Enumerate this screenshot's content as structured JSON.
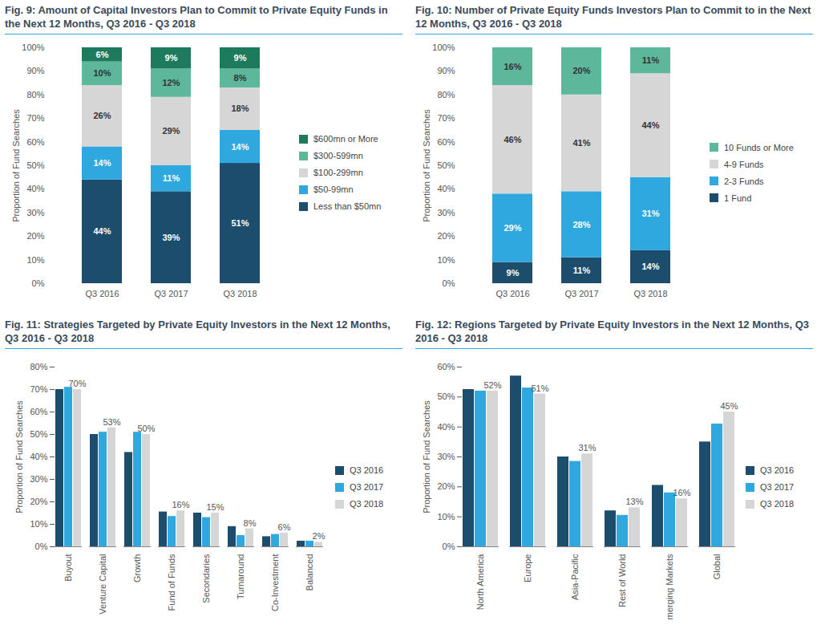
{
  "chart_data": [
    {
      "type": "bar",
      "title": "Fig. 9: Amount of Capital Investors Plan to Commit to Private Equity Funds in the Next 12 Months, Q3 2016 - Q3 2018",
      "ylabel": "Proportion of Fund Searches",
      "categories": [
        "Q3 2016",
        "Q3 2017",
        "Q3 2018"
      ],
      "stacked": true,
      "data_labels": true,
      "legend": "right",
      "series": [
        {
          "name": "Less than $50mn",
          "color": "#1c4d6d",
          "values": [
            44,
            39,
            51
          ],
          "value_labels": [
            "44%",
            "39%",
            "51%"
          ]
        },
        {
          "name": "$50-99mn",
          "color": "#2ea8df",
          "values": [
            14,
            11,
            14
          ],
          "value_labels": [
            "14%",
            "11%",
            "14%"
          ]
        },
        {
          "name": "$100-299mn",
          "color": "#d6d6d6",
          "values": [
            26,
            29,
            18
          ],
          "value_labels": [
            "26%",
            "29%",
            "18%"
          ]
        },
        {
          "name": "$300-599mn",
          "color": "#5db79b",
          "values": [
            10,
            12,
            8
          ],
          "value_labels": [
            "10%",
            "12%",
            "8%"
          ]
        },
        {
          "name": "$600mn or More",
          "color": "#1e7a5d",
          "values": [
            6,
            9,
            9
          ],
          "value_labels": [
            "6%",
            "9%",
            "9%"
          ]
        }
      ],
      "ylim": [
        0,
        100
      ],
      "yticks": [
        {
          "value": 0,
          "label": "0%"
        },
        {
          "value": 10,
          "label": "10%"
        },
        {
          "value": 20,
          "label": "20%"
        },
        {
          "value": 30,
          "label": "30%"
        },
        {
          "value": 40,
          "label": "40%"
        },
        {
          "value": 50,
          "label": "50%"
        },
        {
          "value": 60,
          "label": "60%"
        },
        {
          "value": 70,
          "label": "70%"
        },
        {
          "value": 80,
          "label": "80%"
        },
        {
          "value": 90,
          "label": "90%"
        },
        {
          "value": 100,
          "label": "100%"
        }
      ]
    },
    {
      "type": "bar",
      "title": "Fig. 10: Number of Private Equity Funds Investors Plan to Commit to in the Next 12 Months, Q3 2016 - Q3 2018",
      "ylabel": "Proportion of Fund Searches",
      "categories": [
        "Q3 2016",
        "Q3 2017",
        "Q3 2018"
      ],
      "stacked": true,
      "data_labels": true,
      "legend": "right",
      "series": [
        {
          "name": "1 Fund",
          "color": "#1c4d6d",
          "values": [
            9,
            11,
            14
          ],
          "value_labels": [
            "9%",
            "11%",
            "14%"
          ]
        },
        {
          "name": "2-3 Funds",
          "color": "#2ea8df",
          "values": [
            29,
            28,
            31
          ],
          "value_labels": [
            "29%",
            "28%",
            "31%"
          ]
        },
        {
          "name": "4-9 Funds",
          "color": "#d6d6d6",
          "values": [
            46,
            41,
            44
          ],
          "value_labels": [
            "46%",
            "41%",
            "44%"
          ]
        },
        {
          "name": "10 Funds or More",
          "color": "#5db79b",
          "values": [
            16,
            20,
            11
          ],
          "value_labels": [
            "16%",
            "20%",
            "11%"
          ]
        }
      ],
      "ylim": [
        0,
        100
      ],
      "yticks": [
        {
          "value": 0,
          "label": "0%"
        },
        {
          "value": 10,
          "label": "10%"
        },
        {
          "value": 20,
          "label": "20%"
        },
        {
          "value": 30,
          "label": "30%"
        },
        {
          "value": 40,
          "label": "40%"
        },
        {
          "value": 50,
          "label": "50%"
        },
        {
          "value": 60,
          "label": "60%"
        },
        {
          "value": 70,
          "label": "70%"
        },
        {
          "value": 80,
          "label": "80%"
        },
        {
          "value": 90,
          "label": "90%"
        },
        {
          "value": 100,
          "label": "100%"
        }
      ]
    },
    {
      "type": "bar",
      "title": "Fig. 11: Strategies Targeted by Private Equity Investors in the Next 12 Months, Q3 2016 - Q3 2018",
      "ylabel": "Proportion of Fund Searches",
      "categories": [
        "Buyout",
        "Venture Capital",
        "Growth",
        "Fund of Funds",
        "Secondaries",
        "Turnaround",
        "Co-Investment",
        "Balanced"
      ],
      "stacked": false,
      "legend": "right",
      "series": [
        {
          "name": "Q3 2016",
          "color": "#1c4d6d",
          "values": [
            70,
            50,
            42,
            15.5,
            15,
            9,
            4.5,
            2.5
          ]
        },
        {
          "name": "Q3 2017",
          "color": "#2ea8df",
          "values": [
            71,
            51,
            51,
            13.5,
            13,
            5,
            5.5,
            2.5
          ]
        },
        {
          "name": "Q3 2018",
          "color": "#d6d6d6",
          "values": [
            70,
            53,
            50,
            16,
            15,
            8,
            6,
            2
          ],
          "data_labels": true,
          "value_labels": [
            "70%",
            "53%",
            "50%",
            "16%",
            "15%",
            "8%",
            "6%",
            "2%"
          ]
        }
      ],
      "ylim": [
        0,
        80
      ],
      "yticks": [
        {
          "value": 0,
          "label": "0%"
        },
        {
          "value": 10,
          "label": "10%"
        },
        {
          "value": 20,
          "label": "20%"
        },
        {
          "value": 30,
          "label": "30%"
        },
        {
          "value": 40,
          "label": "40%"
        },
        {
          "value": 50,
          "label": "50%"
        },
        {
          "value": 60,
          "label": "60%"
        },
        {
          "value": 70,
          "label": "70%"
        },
        {
          "value": 80,
          "label": "80%"
        }
      ]
    },
    {
      "type": "bar",
      "title": "Fig. 12: Regions Targeted by Private Equity Investors in the Next 12 Months, Q3 2016 - Q3 2018",
      "ylabel": "Proportion of Fund Searches",
      "categories": [
        "North America",
        "Europe",
        "Asia-Pacific",
        "Rest of World",
        "Emerging Markets",
        "Global"
      ],
      "stacked": false,
      "legend": "right",
      "series": [
        {
          "name": "Q3 2016",
          "color": "#1c4d6d",
          "values": [
            52.5,
            57,
            30,
            12,
            20.5,
            35
          ]
        },
        {
          "name": "Q3 2017",
          "color": "#2ea8df",
          "values": [
            52,
            53,
            28.5,
            10.5,
            18,
            41
          ]
        },
        {
          "name": "Q3 2018",
          "color": "#d6d6d6",
          "values": [
            52,
            51,
            31,
            13,
            16,
            45
          ],
          "data_labels": true,
          "value_labels": [
            "52%",
            "51%",
            "31%",
            "13%",
            "16%",
            "45%"
          ]
        }
      ],
      "ylim": [
        0,
        60
      ],
      "yticks": [
        {
          "value": 0,
          "label": "0%"
        },
        {
          "value": 10,
          "label": "10%"
        },
        {
          "value": 20,
          "label": "20%"
        },
        {
          "value": 30,
          "label": "30%"
        },
        {
          "value": 40,
          "label": "40%"
        },
        {
          "value": 50,
          "label": "50%"
        },
        {
          "value": 60,
          "label": "60%"
        }
      ]
    }
  ]
}
